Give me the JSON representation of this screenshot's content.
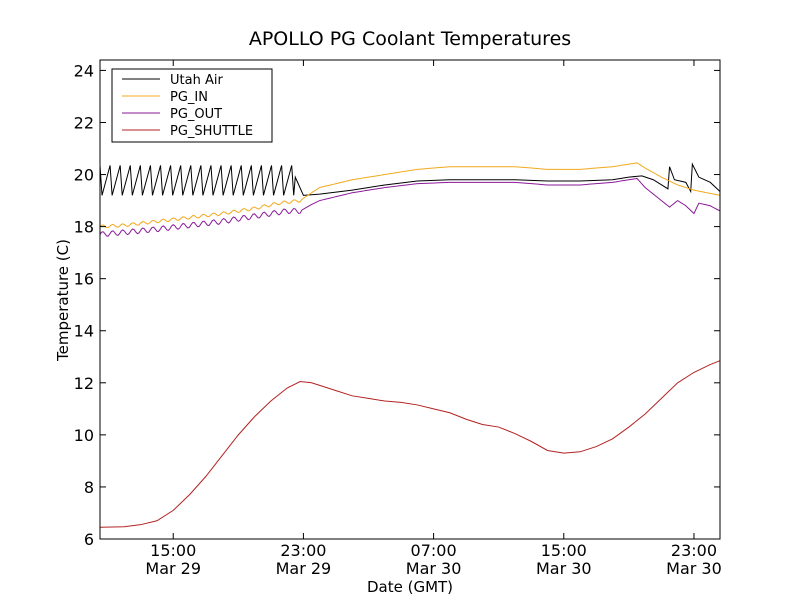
{
  "chart_data": {
    "type": "line",
    "title": "APOLLO PG Coolant Temperatures",
    "xlabel": "Date (GMT)",
    "ylabel": "Temperature (C)",
    "x_unit": "hours since Mar 29 00:00 GMT",
    "xlim": [
      10.5,
      48.6
    ],
    "ylim": [
      6,
      24.4
    ],
    "y_ticks": [
      6,
      8,
      10,
      12,
      14,
      16,
      18,
      20,
      22,
      24
    ],
    "x_ticks": [
      {
        "x": 15,
        "time": "15:00",
        "date": "Mar 29"
      },
      {
        "x": 23,
        "time": "23:00",
        "date": "Mar 29"
      },
      {
        "x": 31,
        "time": "07:00",
        "date": "Mar 30"
      },
      {
        "x": 39,
        "time": "15:00",
        "date": "Mar 30"
      },
      {
        "x": 47,
        "time": "23:00",
        "date": "Mar 30"
      }
    ],
    "legend_position": "top-left",
    "series": [
      {
        "name": "Utah Air",
        "color": "#000000",
        "oscillation": {
          "x_end": 22.5,
          "period": 0.62,
          "low": 19.2,
          "high": 20.35
        },
        "points": [
          [
            22.5,
            19.9
          ],
          [
            23.0,
            19.2
          ],
          [
            24,
            19.25
          ],
          [
            26,
            19.4
          ],
          [
            28,
            19.6
          ],
          [
            30,
            19.75
          ],
          [
            32,
            19.8
          ],
          [
            34,
            19.8
          ],
          [
            36,
            19.8
          ],
          [
            38,
            19.75
          ],
          [
            40,
            19.75
          ],
          [
            42,
            19.8
          ],
          [
            43,
            19.9
          ],
          [
            43.8,
            19.95
          ],
          [
            44.5,
            19.8
          ],
          [
            45.4,
            19.45
          ],
          [
            45.5,
            20.3
          ],
          [
            45.8,
            19.8
          ],
          [
            46.5,
            19.7
          ],
          [
            46.8,
            19.35
          ],
          [
            46.9,
            20.4
          ],
          [
            47.3,
            19.9
          ],
          [
            48,
            19.7
          ],
          [
            48.6,
            19.35
          ]
        ]
      },
      {
        "name": "PG_IN",
        "color": "#f2a81d",
        "points": [
          [
            10.5,
            18.0
          ],
          [
            12,
            18.05
          ],
          [
            14,
            18.2
          ],
          [
            16,
            18.35
          ],
          [
            18,
            18.5
          ],
          [
            20,
            18.7
          ],
          [
            21.5,
            18.9
          ],
          [
            22.8,
            19.0
          ],
          [
            23.5,
            19.3
          ],
          [
            24,
            19.5
          ],
          [
            26,
            19.8
          ],
          [
            28,
            20.0
          ],
          [
            30,
            20.2
          ],
          [
            32,
            20.3
          ],
          [
            34,
            20.3
          ],
          [
            36,
            20.3
          ],
          [
            38,
            20.2
          ],
          [
            40,
            20.2
          ],
          [
            42,
            20.3
          ],
          [
            43.5,
            20.45
          ],
          [
            44,
            20.25
          ],
          [
            45,
            19.9
          ],
          [
            46,
            19.6
          ],
          [
            47,
            19.4
          ],
          [
            48.6,
            19.2
          ]
        ],
        "wiggle": {
          "x_end": 23.0,
          "amp": 0.06
        }
      },
      {
        "name": "PG_OUT",
        "color": "#8b1a9a",
        "points": [
          [
            10.5,
            17.7
          ],
          [
            12,
            17.78
          ],
          [
            14,
            17.9
          ],
          [
            16,
            18.05
          ],
          [
            18,
            18.2
          ],
          [
            20,
            18.4
          ],
          [
            22,
            18.6
          ],
          [
            22.8,
            18.6
          ],
          [
            23.5,
            18.85
          ],
          [
            24,
            19.0
          ],
          [
            26,
            19.3
          ],
          [
            28,
            19.5
          ],
          [
            30,
            19.65
          ],
          [
            32,
            19.7
          ],
          [
            34,
            19.7
          ],
          [
            36,
            19.7
          ],
          [
            38,
            19.6
          ],
          [
            40,
            19.6
          ],
          [
            42,
            19.7
          ],
          [
            43.5,
            19.85
          ],
          [
            44,
            19.5
          ],
          [
            45,
            19.0
          ],
          [
            45.5,
            18.75
          ],
          [
            46,
            19.0
          ],
          [
            46.5,
            18.8
          ],
          [
            47,
            18.5
          ],
          [
            47.3,
            18.9
          ],
          [
            48,
            18.8
          ],
          [
            48.6,
            18.6
          ]
        ],
        "wiggle": {
          "x_end": 23.0,
          "amp": 0.1
        }
      },
      {
        "name": "PG_SHUTTLE",
        "color": "#b22222",
        "points": [
          [
            10.5,
            6.45
          ],
          [
            12,
            6.47
          ],
          [
            13,
            6.55
          ],
          [
            14,
            6.7
          ],
          [
            15,
            7.1
          ],
          [
            16,
            7.7
          ],
          [
            17,
            8.4
          ],
          [
            18,
            9.2
          ],
          [
            19,
            10.0
          ],
          [
            20,
            10.7
          ],
          [
            21,
            11.3
          ],
          [
            22,
            11.8
          ],
          [
            22.8,
            12.05
          ],
          [
            23.5,
            12.0
          ],
          [
            24,
            11.9
          ],
          [
            25,
            11.7
          ],
          [
            26,
            11.5
          ],
          [
            27,
            11.4
          ],
          [
            28,
            11.3
          ],
          [
            29,
            11.25
          ],
          [
            30,
            11.15
          ],
          [
            31,
            11.0
          ],
          [
            32,
            10.85
          ],
          [
            33,
            10.6
          ],
          [
            34,
            10.4
          ],
          [
            35,
            10.3
          ],
          [
            36,
            10.05
          ],
          [
            37,
            9.75
          ],
          [
            38,
            9.4
          ],
          [
            39,
            9.3
          ],
          [
            40,
            9.35
          ],
          [
            41,
            9.55
          ],
          [
            42,
            9.85
          ],
          [
            43,
            10.3
          ],
          [
            44,
            10.8
          ],
          [
            45,
            11.4
          ],
          [
            46,
            12.0
          ],
          [
            47,
            12.4
          ],
          [
            48,
            12.7
          ],
          [
            48.6,
            12.85
          ]
        ]
      }
    ]
  }
}
